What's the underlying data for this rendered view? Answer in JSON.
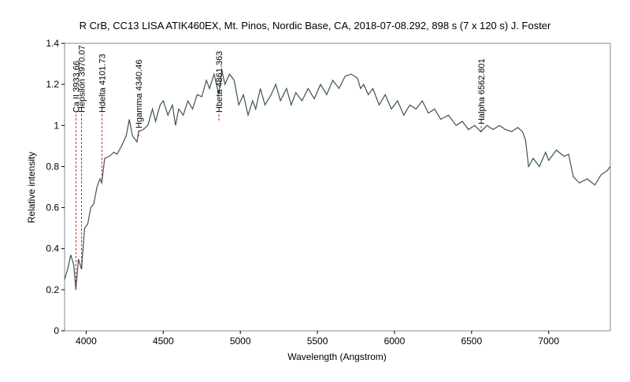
{
  "chart_data": {
    "type": "line",
    "title": "R CrB, CC13 LISA ATIK460EX, Mt. Pinos, Nordic Base, CA, 2018-07-08.292, 898 s (7 x 120 s)   J. Foster",
    "x_label": "Wavelength (Angstrom)",
    "y_label": "Relative intensity",
    "xlim": [
      3860,
      7400
    ],
    "xticks": [
      4000,
      4500,
      5000,
      5500,
      6000,
      6500,
      7000
    ],
    "ylim": [
      0,
      1.4
    ],
    "yticks": [
      0,
      0.2,
      0.4,
      0.6,
      0.8,
      1,
      1.2,
      1.4
    ],
    "x": [
      3860,
      3880,
      3900,
      3920,
      3933,
      3950,
      3970,
      3990,
      4010,
      4030,
      4050,
      4070,
      4090,
      4101,
      4120,
      4150,
      4180,
      4200,
      4230,
      4260,
      4280,
      4300,
      4330,
      4340,
      4370,
      4400,
      4430,
      4450,
      4480,
      4500,
      4530,
      4560,
      4580,
      4600,
      4630,
      4660,
      4690,
      4720,
      4750,
      4780,
      4800,
      4830,
      4860,
      4880,
      4900,
      4930,
      4960,
      4990,
      5020,
      5050,
      5080,
      5100,
      5130,
      5160,
      5200,
      5230,
      5260,
      5300,
      5330,
      5360,
      5400,
      5440,
      5480,
      5520,
      5560,
      5600,
      5640,
      5680,
      5720,
      5760,
      5780,
      5800,
      5830,
      5860,
      5900,
      5940,
      5980,
      6020,
      6060,
      6100,
      6140,
      6180,
      6220,
      6260,
      6300,
      6350,
      6400,
      6440,
      6480,
      6520,
      6560,
      6600,
      6640,
      6680,
      6720,
      6760,
      6800,
      6830,
      6850,
      6870,
      6900,
      6940,
      6980,
      7000,
      7050,
      7100,
      7130,
      7160,
      7200,
      7250,
      7300,
      7340,
      7380,
      7400
    ],
    "series": [
      {
        "color": "#3d5252",
        "values": [
          0.25,
          0.3,
          0.37,
          0.32,
          0.2,
          0.35,
          0.3,
          0.5,
          0.52,
          0.6,
          0.62,
          0.7,
          0.74,
          0.72,
          0.84,
          0.85,
          0.87,
          0.86,
          0.9,
          0.95,
          1.03,
          0.95,
          0.92,
          0.97,
          0.98,
          1.0,
          1.08,
          1.02,
          1.1,
          1.12,
          1.05,
          1.1,
          1.0,
          1.08,
          1.05,
          1.12,
          1.08,
          1.15,
          1.14,
          1.22,
          1.18,
          1.25,
          1.15,
          1.27,
          1.2,
          1.25,
          1.22,
          1.1,
          1.15,
          1.05,
          1.12,
          1.08,
          1.18,
          1.1,
          1.15,
          1.2,
          1.12,
          1.18,
          1.1,
          1.16,
          1.12,
          1.18,
          1.13,
          1.2,
          1.15,
          1.22,
          1.18,
          1.24,
          1.25,
          1.23,
          1.18,
          1.2,
          1.15,
          1.18,
          1.1,
          1.15,
          1.08,
          1.12,
          1.05,
          1.1,
          1.08,
          1.12,
          1.06,
          1.08,
          1.03,
          1.05,
          1.0,
          1.02,
          0.98,
          1.0,
          0.97,
          1.0,
          0.98,
          1.0,
          0.98,
          0.97,
          0.99,
          0.97,
          0.93,
          0.8,
          0.84,
          0.8,
          0.87,
          0.83,
          0.88,
          0.85,
          0.86,
          0.75,
          0.72,
          0.74,
          0.71,
          0.76,
          0.78,
          0.8
        ]
      }
    ],
    "annotations": [
      {
        "label": "Ca II 3933.66",
        "x": 3933.66
      },
      {
        "label": "Hepsilon 3970.07",
        "x": 3970.07
      },
      {
        "label": "Hdelta 4101.73",
        "x": 4101.73
      },
      {
        "label": "Hgamma 4340.46",
        "x": 4340.46
      },
      {
        "label": "Hbeta 4861.363",
        "x": 4861.363
      },
      {
        "label": "Halpha 6562.801",
        "x": 6562.801
      }
    ],
    "annotation_color": "#e02020"
  }
}
